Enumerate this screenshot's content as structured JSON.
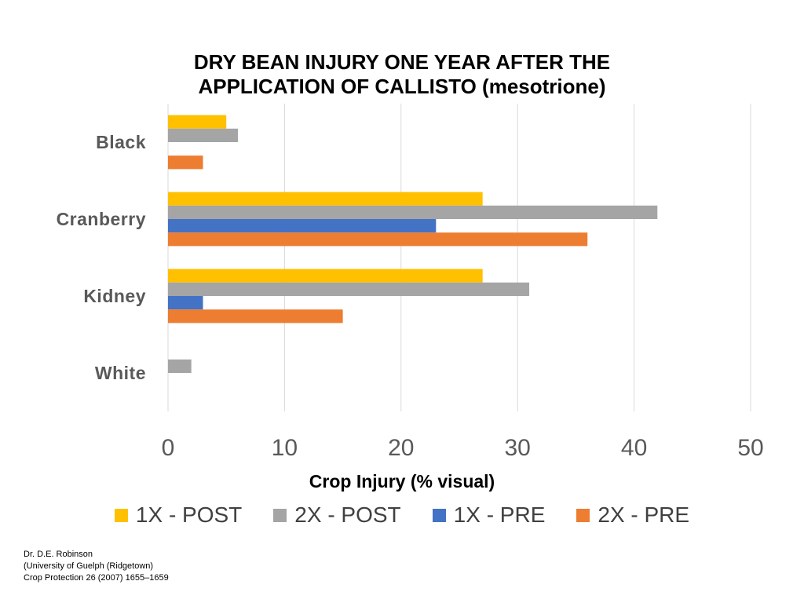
{
  "title": {
    "line1": "DRY BEAN INJURY ONE YEAR AFTER THE",
    "line2": "APPLICATION OF CALLISTO (mesotrione)"
  },
  "chart_data": {
    "type": "bar",
    "orientation": "horizontal",
    "title": "DRY BEAN INJURY ONE YEAR AFTER THE APPLICATION OF CALLISTO (mesotrione)",
    "xlabel": "Crop Injury (% visual)",
    "ylabel": "",
    "xlim": [
      0,
      50
    ],
    "xticks": [
      "0",
      "10",
      "20",
      "30",
      "40",
      "50"
    ],
    "grid": "vertical",
    "legend_position": "bottom",
    "categories": [
      "Black",
      "Cranberry",
      "Kidney",
      "White"
    ],
    "series": [
      {
        "name": "1X - POST",
        "color": "#FFC000",
        "values": [
          5,
          27,
          27,
          0
        ]
      },
      {
        "name": "2X - POST",
        "color": "#A5A5A5",
        "values": [
          6,
          42,
          31,
          2
        ]
      },
      {
        "name": "1X - PRE",
        "color": "#4472C4",
        "values": [
          0,
          23,
          3,
          0
        ]
      },
      {
        "name": "2X - PRE",
        "color": "#ED7D31",
        "values": [
          3,
          36,
          15,
          0
        ]
      }
    ]
  },
  "credit": {
    "line1": "Dr. D.E. Robinson",
    "line2": "(University of Guelph (Ridgetown)",
    "line3": "Crop Protection 26 (2007) 1655–1659"
  }
}
